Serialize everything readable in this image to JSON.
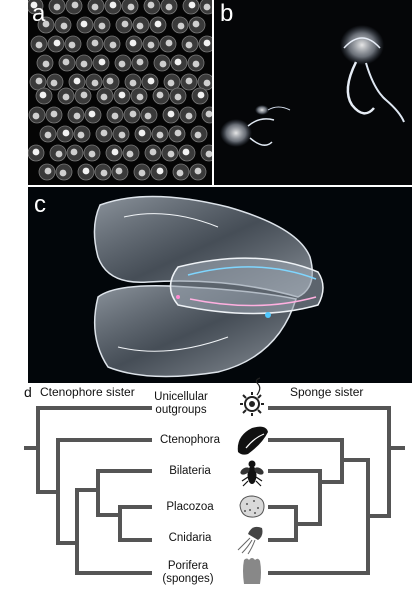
{
  "panels": {
    "a": {
      "letter": "a"
    },
    "b": {
      "letter": "b"
    },
    "c": {
      "letter": "c"
    },
    "d": {
      "letter": "d"
    }
  },
  "tree": {
    "left_header": "Ctenophore sister",
    "right_header": "Sponge sister",
    "taxa": [
      {
        "line1": "Unicellular",
        "line2": "outgroups",
        "icon": "choanoflagellate-icon"
      },
      {
        "line1": "Ctenophora",
        "line2": "",
        "icon": "ctenophore-icon"
      },
      {
        "line1": "Bilateria",
        "line2": "",
        "icon": "fly-icon"
      },
      {
        "line1": "Placozoa",
        "line2": "",
        "icon": "placozoan-icon"
      },
      {
        "line1": "Cnidaria",
        "line2": "",
        "icon": "jellyfish-icon"
      },
      {
        "line1": "Porifera",
        "line2": "(sponges)",
        "icon": "sponge-icon"
      }
    ]
  },
  "colors": {
    "tree": "#555555",
    "photo_background": "#000000"
  }
}
